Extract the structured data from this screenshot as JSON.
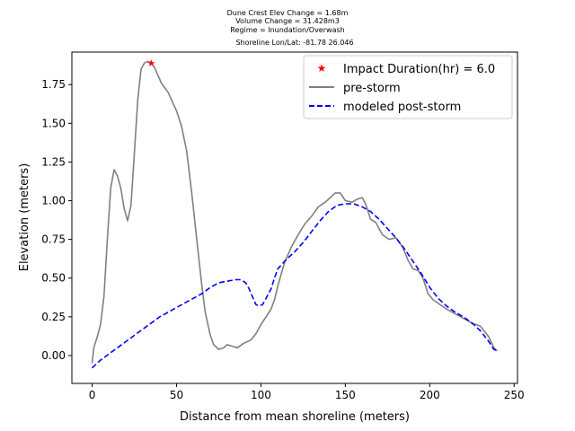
{
  "chart_data": {
    "type": "line",
    "annotations": [
      "Dune Crest Elev Change = 1.68m",
      "Volume Change = 31.428m3",
      "Regime = Inundation/Overwash",
      "Shoreline Lon/Lat: -81.78 26.046"
    ],
    "xlabel": "Distance from mean shoreline (meters)",
    "ylabel": "Elevation (meters)",
    "xlim": [
      -12,
      252
    ],
    "ylim": [
      -0.18,
      1.96
    ],
    "xticks": [
      0,
      50,
      100,
      150,
      200,
      250
    ],
    "yticks": [
      0.0,
      0.25,
      0.5,
      0.75,
      1.0,
      1.25,
      1.5,
      1.75
    ],
    "xtick_labels": [
      "0",
      "50",
      "100",
      "150",
      "200",
      "250"
    ],
    "ytick_labels": [
      "0.00",
      "0.25",
      "0.50",
      "0.75",
      "1.00",
      "1.25",
      "1.50",
      "1.75"
    ],
    "legend_position": "top-right",
    "grid": false,
    "marker": {
      "name": "Impact Duration(hr) = 6.0",
      "x": 35,
      "y": 1.89,
      "color": "#ff0000",
      "symbol": "star"
    },
    "series": [
      {
        "name": "pre-storm",
        "color": "#808080",
        "style": "solid",
        "x": [
          0,
          1,
          3,
          5,
          7,
          9,
          11,
          13,
          15,
          17,
          19,
          21,
          23,
          25,
          27,
          29,
          31,
          33,
          35,
          37,
          39,
          41,
          45,
          50,
          53,
          56,
          59,
          62,
          65,
          67,
          70,
          72,
          75,
          78,
          80,
          83,
          86,
          90,
          94,
          97,
          100,
          103,
          106,
          108,
          110,
          114,
          118,
          122,
          126,
          130,
          134,
          138,
          141,
          144,
          147,
          150,
          154,
          157,
          160,
          162,
          165,
          168,
          172,
          176,
          180,
          184,
          187,
          190,
          193,
          196,
          199,
          202,
          206,
          210,
          215,
          220,
          225,
          230,
          235,
          238,
          240
        ],
        "y": [
          -0.05,
          0.05,
          0.12,
          0.2,
          0.38,
          0.75,
          1.08,
          1.2,
          1.16,
          1.08,
          0.95,
          0.87,
          0.97,
          1.3,
          1.65,
          1.85,
          1.89,
          1.9,
          1.89,
          1.86,
          1.81,
          1.76,
          1.7,
          1.58,
          1.48,
          1.32,
          1.05,
          0.75,
          0.45,
          0.28,
          0.13,
          0.07,
          0.04,
          0.05,
          0.07,
          0.06,
          0.05,
          0.08,
          0.1,
          0.14,
          0.2,
          0.25,
          0.3,
          0.36,
          0.45,
          0.6,
          0.7,
          0.78,
          0.85,
          0.9,
          0.96,
          0.99,
          1.02,
          1.05,
          1.05,
          1.0,
          0.99,
          1.01,
          1.02,
          0.98,
          0.88,
          0.86,
          0.78,
          0.75,
          0.76,
          0.7,
          0.62,
          0.56,
          0.55,
          0.5,
          0.4,
          0.36,
          0.33,
          0.3,
          0.27,
          0.24,
          0.21,
          0.19,
          0.12,
          0.05,
          0.03
        ]
      },
      {
        "name": "modeled post-storm",
        "color": "#0000ff",
        "style": "dashed",
        "x": [
          0,
          5,
          10,
          15,
          20,
          25,
          30,
          35,
          40,
          45,
          50,
          55,
          60,
          65,
          70,
          75,
          80,
          85,
          88,
          91,
          93,
          95,
          97,
          99,
          101,
          103,
          106,
          108,
          110,
          115,
          120,
          125,
          130,
          135,
          140,
          145,
          150,
          155,
          160,
          165,
          170,
          175,
          180,
          185,
          190,
          195,
          200,
          205,
          210,
          215,
          220,
          225,
          230,
          235,
          238,
          240
        ],
        "y": [
          -0.08,
          -0.03,
          0.01,
          0.05,
          0.09,
          0.13,
          0.17,
          0.21,
          0.25,
          0.28,
          0.31,
          0.34,
          0.37,
          0.4,
          0.44,
          0.47,
          0.48,
          0.49,
          0.49,
          0.47,
          0.43,
          0.38,
          0.33,
          0.32,
          0.33,
          0.37,
          0.43,
          0.5,
          0.56,
          0.62,
          0.67,
          0.73,
          0.8,
          0.87,
          0.93,
          0.97,
          0.98,
          0.98,
          0.96,
          0.93,
          0.88,
          0.82,
          0.76,
          0.69,
          0.61,
          0.53,
          0.44,
          0.37,
          0.32,
          0.28,
          0.25,
          0.21,
          0.16,
          0.09,
          0.04,
          0.03
        ]
      }
    ]
  }
}
